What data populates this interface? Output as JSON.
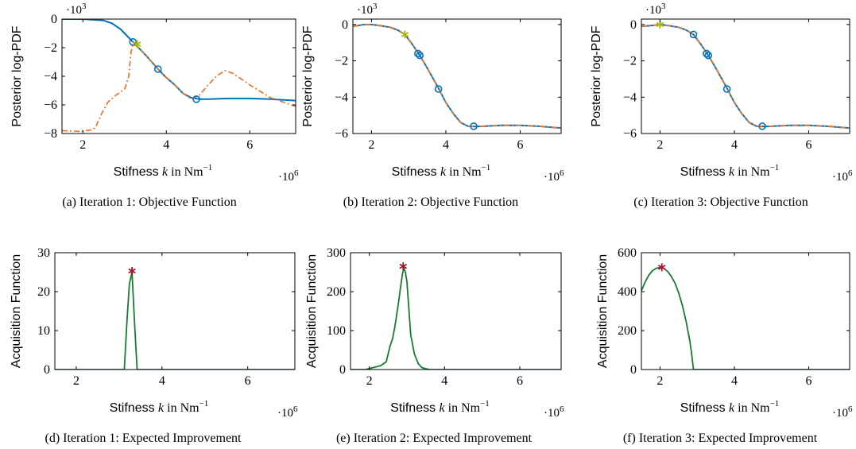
{
  "colors": {
    "posterior": "#0072bd",
    "estimate": "#e8762b",
    "acquisition": "#1a7a34",
    "current_best": "#a7b90c",
    "acq_max": "#a2142f"
  },
  "chart_data": [
    {
      "type": "line",
      "caption": "(a) Iteration 1: Objective Function",
      "xlabel_prefix": "Stifness ",
      "xlabel_var": "k",
      "xlabel_unit": " in Nm",
      "xlabel_exp": "−1",
      "x_multiplier": "·10",
      "x_multiplier_exp": "6",
      "ylabel": "Posterior log-PDF",
      "y_multiplier": "·10",
      "y_multiplier_exp": "3",
      "xlim": [
        1.5,
        7.1
      ],
      "ylim": [
        -8,
        0
      ],
      "xticks": [
        2,
        4,
        6
      ],
      "yticks": [
        0,
        -2,
        -4,
        -6,
        -8
      ],
      "series": [
        {
          "kind": "true",
          "x": [
            1.5,
            2.0,
            2.5,
            2.7,
            2.9,
            3.0,
            3.1,
            3.2,
            3.3,
            3.5,
            3.8,
            4.0,
            4.2,
            4.4,
            4.6,
            4.8,
            5.0,
            5.5,
            6.0,
            6.5,
            7.1
          ],
          "y": [
            0,
            0,
            -0.1,
            -0.3,
            -0.7,
            -1.0,
            -1.3,
            -1.6,
            -1.9,
            -2.5,
            -3.5,
            -4.1,
            -4.6,
            -5.2,
            -5.5,
            -5.6,
            -5.6,
            -5.55,
            -5.55,
            -5.6,
            -5.7
          ]
        },
        {
          "kind": "estimate",
          "x": [
            1.5,
            1.9,
            2.2,
            2.3,
            2.45,
            2.6,
            2.8,
            3.0,
            3.1,
            3.15,
            3.2,
            3.3,
            3.5,
            3.8,
            4.0,
            4.2,
            4.4,
            4.6,
            4.8,
            5.0,
            5.2,
            5.4,
            5.6,
            6.0,
            6.5,
            6.8,
            7.1
          ],
          "y": [
            -7.8,
            -7.85,
            -7.75,
            -7.6,
            -6.6,
            -5.8,
            -5.3,
            -4.9,
            -4.0,
            -2.4,
            -1.6,
            -1.9,
            -2.5,
            -3.5,
            -4.1,
            -4.6,
            -5.2,
            -5.6,
            -5.3,
            -4.6,
            -4.0,
            -3.6,
            -3.8,
            -4.6,
            -5.5,
            -5.8,
            -6.1
          ]
        }
      ],
      "samples": {
        "x": [
          3.2,
          3.8,
          4.72
        ],
        "y": [
          -1.6,
          -3.5,
          -5.6
        ]
      },
      "best": {
        "x": 3.3,
        "y": -1.75
      }
    },
    {
      "type": "line",
      "caption": "(b) Iteration 2: Objective Function",
      "xlabel_prefix": "Stifness ",
      "xlabel_var": "k",
      "xlabel_unit": " in Nm",
      "xlabel_exp": "−1",
      "x_multiplier": "·10",
      "x_multiplier_exp": "6",
      "ylabel": "Posterior log-PDF",
      "y_multiplier": "·10",
      "y_multiplier_exp": "3",
      "xlim": [
        1.5,
        7.1
      ],
      "ylim": [
        -6,
        0.3
      ],
      "xticks": [
        2,
        4,
        6
      ],
      "yticks": [
        0,
        -2,
        -4,
        -6
      ],
      "series": [
        {
          "kind": "true",
          "x": [
            1.5,
            1.8,
            2.0,
            2.2,
            2.5,
            2.7,
            2.9,
            3.1,
            3.3,
            3.5,
            3.8,
            4.0,
            4.2,
            4.4,
            4.6,
            4.8,
            5.0,
            5.5,
            6.0,
            6.5,
            7.1
          ],
          "y": [
            -0.1,
            0,
            0,
            -0.05,
            -0.15,
            -0.3,
            -0.55,
            -1.1,
            -1.7,
            -2.4,
            -3.5,
            -4.3,
            -4.9,
            -5.4,
            -5.6,
            -5.62,
            -5.6,
            -5.55,
            -5.55,
            -5.6,
            -5.7
          ]
        },
        {
          "kind": "estimate",
          "x": [
            1.5,
            1.8,
            2.0,
            2.2,
            2.5,
            2.7,
            2.9,
            3.1,
            3.3,
            3.5,
            3.8,
            4.0,
            4.2,
            4.4,
            4.6,
            4.8,
            5.0,
            5.5,
            6.0,
            6.5,
            7.1
          ],
          "y": [
            -0.1,
            0,
            0,
            -0.05,
            -0.15,
            -0.3,
            -0.55,
            -1.1,
            -1.7,
            -2.4,
            -3.5,
            -4.3,
            -4.9,
            -5.4,
            -5.6,
            -5.62,
            -5.6,
            -5.55,
            -5.55,
            -5.6,
            -5.7
          ]
        }
      ],
      "samples": {
        "x": [
          3.25,
          3.3,
          3.8,
          4.75
        ],
        "y": [
          -1.6,
          -1.7,
          -3.55,
          -5.6
        ]
      },
      "best": {
        "x": 2.9,
        "y": -0.55
      }
    },
    {
      "type": "line",
      "caption": "(c) Iteration 3: Objective Function",
      "xlabel_prefix": "Stifness ",
      "xlabel_var": "k",
      "xlabel_unit": " in Nm",
      "xlabel_exp": "−1",
      "x_multiplier": "·10",
      "x_multiplier_exp": "6",
      "ylabel": "Posterior log-PDF",
      "y_multiplier": "·10",
      "y_multiplier_exp": "3",
      "xlim": [
        1.5,
        7.1
      ],
      "ylim": [
        -6,
        0.3
      ],
      "xticks": [
        2,
        4,
        6
      ],
      "yticks": [
        0,
        -2,
        -4,
        -6
      ],
      "series": [
        {
          "kind": "true",
          "x": [
            1.5,
            1.8,
            2.0,
            2.2,
            2.5,
            2.7,
            2.9,
            3.1,
            3.3,
            3.5,
            3.8,
            4.0,
            4.2,
            4.4,
            4.6,
            4.8,
            5.0,
            5.5,
            6.0,
            6.5,
            7.1
          ],
          "y": [
            -0.1,
            -0.05,
            0,
            -0.05,
            -0.15,
            -0.3,
            -0.55,
            -1.1,
            -1.7,
            -2.4,
            -3.5,
            -4.3,
            -4.9,
            -5.4,
            -5.6,
            -5.62,
            -5.6,
            -5.55,
            -5.55,
            -5.6,
            -5.7
          ]
        },
        {
          "kind": "estimate",
          "x": [
            1.5,
            1.8,
            2.0,
            2.2,
            2.5,
            2.7,
            2.9,
            3.1,
            3.3,
            3.5,
            3.8,
            4.0,
            4.2,
            4.4,
            4.6,
            4.8,
            5.0,
            5.5,
            6.0,
            6.5,
            7.1
          ],
          "y": [
            -0.1,
            -0.05,
            0,
            -0.05,
            -0.15,
            -0.3,
            -0.55,
            -1.1,
            -1.7,
            -2.4,
            -3.5,
            -4.3,
            -4.9,
            -5.4,
            -5.6,
            -5.62,
            -5.6,
            -5.55,
            -5.55,
            -5.6,
            -5.7
          ]
        }
      ],
      "samples": {
        "x": [
          2.9,
          3.25,
          3.3,
          3.8,
          4.75
        ],
        "y": [
          -0.55,
          -1.6,
          -1.7,
          -3.55,
          -5.6
        ]
      },
      "best": {
        "x": 2.0,
        "y": 0
      }
    },
    {
      "type": "line",
      "caption": "(d) Iteration 1: Expected Improvement",
      "xlabel_prefix": "Stifness ",
      "xlabel_var": "k",
      "xlabel_unit": " in Nm",
      "xlabel_exp": "−1",
      "x_multiplier": "·10",
      "x_multiplier_exp": "6",
      "ylabel": "Acquisition Function",
      "xlim": [
        1.5,
        7.1
      ],
      "ylim": [
        0,
        30
      ],
      "xticks": [
        2,
        4,
        6
      ],
      "yticks": [
        0,
        10,
        20,
        30
      ],
      "series": [
        {
          "kind": "acq",
          "x": [
            1.5,
            3.12,
            3.18,
            3.24,
            3.3,
            3.36,
            3.42,
            7.1
          ],
          "y": [
            0,
            0,
            12,
            22,
            25,
            12,
            0,
            0
          ]
        }
      ],
      "max": {
        "x": 3.3,
        "y": 25.3
      }
    },
    {
      "type": "line",
      "caption": "(e) Iteration 2: Expected Improvement",
      "xlabel_prefix": "Stifness ",
      "xlabel_var": "k",
      "xlabel_unit": " in Nm",
      "xlabel_exp": "−1",
      "x_multiplier": "·10",
      "x_multiplier_exp": "6",
      "ylabel": "Acquisition Function",
      "xlim": [
        1.5,
        7.1
      ],
      "ylim": [
        0,
        300
      ],
      "xticks": [
        2,
        4,
        6
      ],
      "yticks": [
        0,
        100,
        200,
        300
      ],
      "series": [
        {
          "kind": "acq",
          "x": [
            1.5,
            1.9,
            2.1,
            2.3,
            2.45,
            2.5,
            2.55,
            2.62,
            2.68,
            2.72,
            2.78,
            2.83,
            2.88,
            2.92,
            2.96,
            3.0,
            3.05,
            3.1,
            3.2,
            3.3,
            3.4,
            3.5,
            3.6,
            7.1
          ],
          "y": [
            0,
            0,
            5,
            10,
            20,
            40,
            60,
            80,
            110,
            135,
            175,
            210,
            245,
            260,
            250,
            225,
            160,
            90,
            40,
            15,
            5,
            2,
            0,
            0
          ]
        }
      ],
      "max": {
        "x": 2.9,
        "y": 265
      }
    },
    {
      "type": "line",
      "caption": "(f) Iteration 3: Expected Improvement",
      "xlabel_prefix": "Stifness ",
      "xlabel_var": "k",
      "xlabel_unit": " in Nm",
      "xlabel_exp": "−1",
      "x_multiplier": "·10",
      "x_multiplier_exp": "6",
      "ylabel": "Acquisition Function",
      "xlim": [
        1.5,
        7.1
      ],
      "ylim": [
        0,
        600
      ],
      "xticks": [
        2,
        4,
        6
      ],
      "yticks": [
        0,
        200,
        400,
        600
      ],
      "series": [
        {
          "kind": "acq",
          "x": [
            1.5,
            1.6,
            1.7,
            1.8,
            1.9,
            2.0,
            2.1,
            2.2,
            2.3,
            2.4,
            2.5,
            2.6,
            2.7,
            2.8,
            2.85,
            2.9,
            7.1
          ],
          "y": [
            405,
            450,
            485,
            508,
            520,
            524,
            520,
            505,
            480,
            445,
            395,
            330,
            250,
            150,
            80,
            0,
            0
          ]
        }
      ],
      "max": {
        "x": 2.05,
        "y": 525
      }
    }
  ]
}
